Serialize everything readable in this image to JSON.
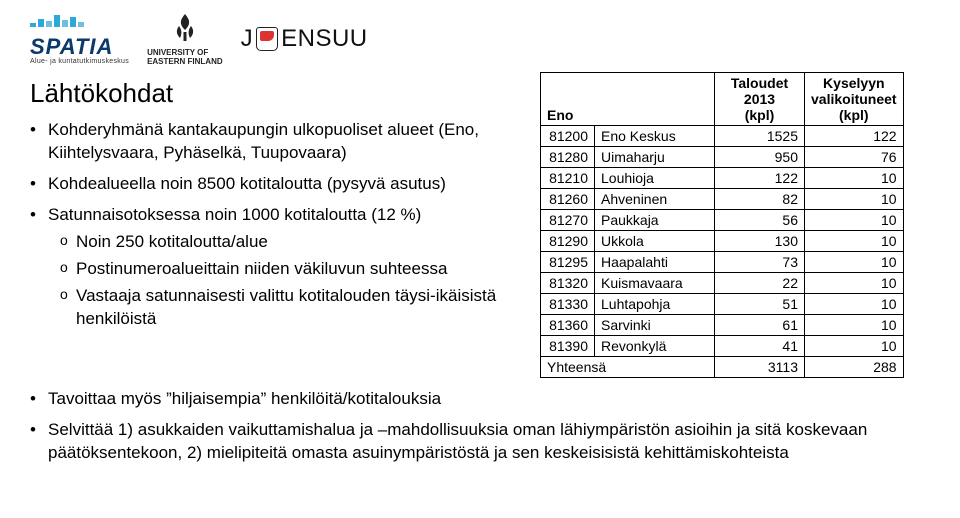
{
  "logos": {
    "spatia": {
      "word": "SPATIA",
      "tagline": "Alue- ja kuntatutkimuskeskus"
    },
    "uef": {
      "line1": "UNIVERSITY OF",
      "line2": "EASTERN FINLAND"
    },
    "joensuu": {
      "left": "J",
      "right": "ENSUU"
    }
  },
  "heading": "Lähtökohdat",
  "left_bullets": {
    "b1": "Kohderyhmänä kantakaupungin ulkopuoliset alueet (Eno, Kiihtelysvaara, Pyhäselkä, Tuupovaara)",
    "b2": "Kohdealueella noin 8500 kotitaloutta (pysyvä asutus)",
    "b3": "Satunnaisotoksessa noin 1000 kotitaloutta (12 %)",
    "b3s1": "Noin 250 kotitaloutta/alue",
    "b3s2": "Postinumeroalueittain niiden väkiluvun suhteessa",
    "b3s3": "Vastaaja satunnaisesti valittu kotitalouden täysi-ikäisistä henkilöistä"
  },
  "bottom_bullets": {
    "b4": "Tavoittaa myös ”hiljaisempia” henkilöitä/kotitalouksia",
    "b5": "Selvittää 1) asukkaiden vaikuttamishalua ja –mahdollisuuksia oman lähiympäristön asioihin ja sitä koskevaan päätöksentekoon, 2) mielipiteitä omasta asuinympäristöstä ja sen keskeisisistä kehittämiskohteista"
  },
  "table": {
    "header": {
      "eno": "Eno",
      "col1_line1": "Taloudet 2013",
      "col1_line2": "(kpl)",
      "col2_line1": "Kyselyyn",
      "col2_line2": "valikoituneet",
      "col2_line3": "(kpl)"
    },
    "columns_width": {
      "code": 54,
      "name": 120,
      "num": 90,
      "num2": 96
    },
    "font_size": 14,
    "border_color": "#000000",
    "background_color": "#ffffff",
    "rows": [
      {
        "code": "81200",
        "name": "Eno Keskus",
        "v1": "1525",
        "v2": "122"
      },
      {
        "code": "81280",
        "name": "Uimaharju",
        "v1": "950",
        "v2": "76"
      },
      {
        "code": "81210",
        "name": "Louhioja",
        "v1": "122",
        "v2": "10"
      },
      {
        "code": "81260",
        "name": "Ahveninen",
        "v1": "82",
        "v2": "10"
      },
      {
        "code": "81270",
        "name": "Paukkaja",
        "v1": "56",
        "v2": "10"
      },
      {
        "code": "81290",
        "name": "Ukkola",
        "v1": "130",
        "v2": "10"
      },
      {
        "code": "81295",
        "name": "Haapalahti",
        "v1": "73",
        "v2": "10"
      },
      {
        "code": "81320",
        "name": "Kuismavaara",
        "v1": "22",
        "v2": "10"
      },
      {
        "code": "81330",
        "name": "Luhtapohja",
        "v1": "51",
        "v2": "10"
      },
      {
        "code": "81360",
        "name": "Sarvinki",
        "v1": "61",
        "v2": "10"
      },
      {
        "code": "81390",
        "name": "Revonkylä",
        "v1": "41",
        "v2": "10"
      }
    ],
    "sum": {
      "label": "Yhteensä",
      "v1": "3113",
      "v2": "288"
    }
  }
}
